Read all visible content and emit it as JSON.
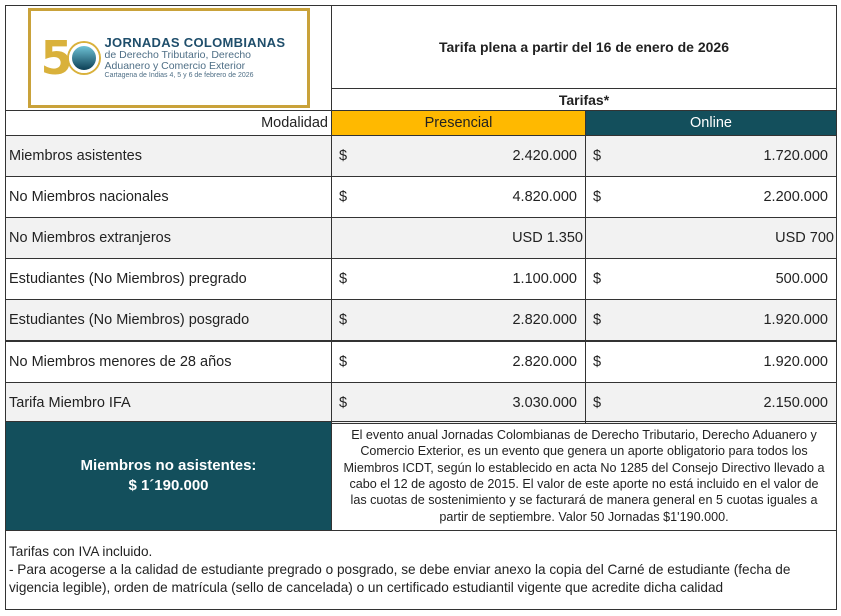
{
  "logo": {
    "number": "50",
    "title": "JORNADAS COLOMBIANAS",
    "line2": "de Derecho Tributario, Derecho",
    "line3": "Aduanero y Comercio Exterior",
    "line4": "Cartagena de Indias 4, 5 y 6 de febrero de 2026"
  },
  "header": {
    "title": "Tarifa plena a partir del 16 de enero de 2026",
    "tarifas": "Tarifas*"
  },
  "columns": {
    "modalidad": "Modalidad",
    "presencial": "Presencial",
    "online": "Online"
  },
  "colors": {
    "presencial": "#ffb900",
    "online": "#134f5c"
  },
  "rows": [
    {
      "label": "Miembros asistentes",
      "cur_p": "$",
      "presencial": "2.420.000",
      "cur_o": "$",
      "online": "1.720.000"
    },
    {
      "label": "No Miembros nacionales",
      "cur_p": "$",
      "presencial": "4.820.000",
      "cur_o": "$",
      "online": "2.200.000"
    },
    {
      "label": "No Miembros extranjeros",
      "presencial": "USD 1.350",
      "online": "USD 700"
    },
    {
      "label": "Estudiantes (No Miembros) pregrado",
      "cur_p": "$",
      "presencial": "1.100.000",
      "cur_o": "$",
      "online": "500.000"
    },
    {
      "label": "Estudiantes (No Miembros) posgrado",
      "cur_p": "$",
      "presencial": "2.820.000",
      "cur_o": "$",
      "online": "1.920.000"
    },
    {
      "label": "No Miembros menores de 28 años",
      "cur_p": "$",
      "presencial": "2.820.000",
      "cur_o": "$",
      "online": "1.920.000"
    },
    {
      "label": "Tarifa Miembro IFA",
      "cur_p": "$",
      "presencial": "3.030.000",
      "cur_o": "$",
      "online": "2.150.000"
    }
  ],
  "no_asistentes": {
    "label": "Miembros no asistentes:",
    "value": "$ 1´190.000",
    "description": "El evento anual Jornadas Colombianas de Derecho Tributario, Derecho Aduanero y Comercio Exterior, es un evento que genera un aporte obligatorio para todos los Miembros ICDT, según lo establecido en acta No 1285 del Consejo Directivo llevado a cabo el 12 de agosto de 2015. El valor de este aporte no está incluido en el valor de las cuotas de sostenimiento y se facturará de manera general en 5 cuotas iguales a partir de septiembre. Valor 50 Jornadas $1'190.000."
  },
  "notes": {
    "line1": "Tarifas con  IVA incluido.",
    "line2": "- Para acogerse a la calidad  de estudiante pregrado o posgrado,  se debe enviar anexo la copia del Carné de estudiante (fecha de vigencia legible), orden de matrícula (sello de cancelada)  o un certificado estudiantil vigente que acredite dicha calidad"
  }
}
